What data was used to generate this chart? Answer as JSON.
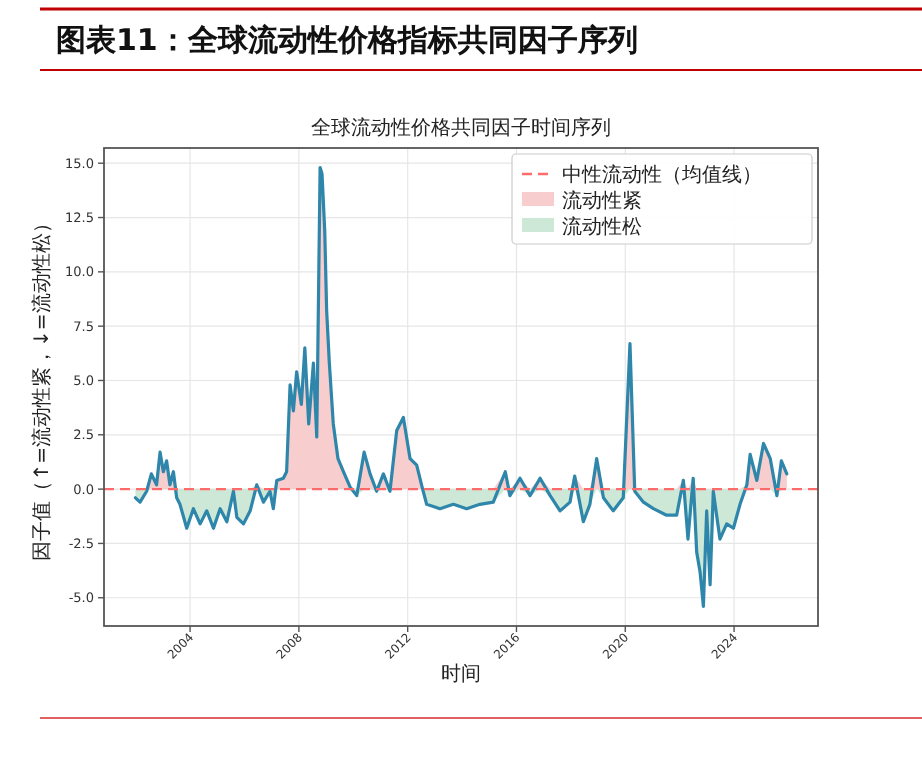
{
  "chart_data": {
    "type": "line",
    "title": "图表11：全球流动性价格指标共同因子序列",
    "subtitle": "全球流动性价格共同因子时间序列",
    "xlabel": "时间",
    "ylabel": "因子值（↑=流动性紧，↓=流动性松）",
    "x": [
      "2001-12-28",
      "2002-02-28",
      "2002-05-28",
      "2002-07-30",
      "2002-10-08",
      "2002-11-24",
      "2003-01-07",
      "2003-02-20",
      "2003-04-05",
      "2003-05-22",
      "2003-07-05",
      "2003-08-18",
      "2003-11-17",
      "2004-02-14",
      "2004-05-15",
      "2004-08-12",
      "2004-11-10",
      "2005-02-07",
      "2005-05-09",
      "2005-08-05",
      "2005-09-20",
      "2005-12-18",
      "2006-03-18",
      "2006-06-14",
      "2006-09-12",
      "2006-12-09",
      "2007-01-23",
      "2007-03-10",
      "2007-06-06",
      "2007-07-20",
      "2007-09-05",
      "2007-10-19",
      "2007-12-02",
      "2008-02-03",
      "2008-03-21",
      "2008-05-12",
      "2008-07-14",
      "2008-08-28",
      "2008-10-12",
      "2008-11-07",
      "2008-12-13",
      "2009-01-08",
      "2009-02-13",
      "2009-04-07",
      "2009-06-09",
      "2009-08-21",
      "2009-11-18",
      "2010-02-16",
      "2010-05-26",
      "2010-08-14",
      "2010-11-10",
      "2011-02-09",
      "2011-05-08",
      "2011-08-07",
      "2011-11-04",
      "2012-02-02",
      "2012-05-01",
      "2012-07-12",
      "2012-09-12",
      "2013-03-10",
      "2013-09-05",
      "2014-03-03",
      "2014-08-29",
      "2015-02-24",
      "2015-08-04",
      "2015-10-05",
      "2016-02-17",
      "2016-07-01",
      "2016-11-13",
      "2017-03-28",
      "2017-08-08",
      "2017-12-20",
      "2018-02-21",
      "2018-06-17",
      "2018-09-13",
      "2018-12-13",
      "2019-03-14",
      "2019-07-24",
      "2019-12-05",
      "2020-03-04",
      "2020-05-07",
      "2020-09-01",
      "2021-01-12",
      "2021-07-09",
      "2021-11-21",
      "2022-02-19",
      "2022-04-22",
      "2022-07-01",
      "2022-08-17",
      "2022-10-01",
      "2022-11-15",
      "2022-12-29",
      "2023-02-13",
      "2023-03-28",
      "2023-06-25",
      "2023-09-24",
      "2023-12-23",
      "2024-03-21",
      "2024-06-21",
      "2024-08-04",
      "2024-11-01",
      "2025-01-30",
      "2025-05-01",
      "2025-07-29",
      "2025-09-27",
      "2025-12-09"
    ],
    "series": [
      {
        "type": "area",
        "name": "流动性紧",
        "color": "#f7cdcd",
        "values": [
          0,
          0,
          0,
          0.7,
          0.2,
          1.7,
          0.8,
          1.3,
          0.2,
          0.8,
          0,
          0,
          0,
          0,
          0,
          0,
          0,
          0,
          0,
          0,
          0,
          0,
          0,
          0.2,
          0,
          0,
          0,
          0.4,
          0.5,
          0.8,
          4.8,
          3.6,
          5.4,
          3.9,
          6.5,
          3.0,
          5.8,
          2.4,
          14.8,
          14.5,
          11.9,
          8.2,
          5.8,
          3.0,
          1.4,
          0.8,
          0.1,
          0,
          1.7,
          0.7,
          0,
          0.7,
          0,
          2.7,
          3.3,
          1.4,
          1.1,
          0.1,
          0,
          0,
          0,
          0,
          0,
          0,
          0.8,
          0,
          0.5,
          0,
          0.5,
          0,
          0,
          0,
          0.6,
          0,
          0,
          1.4,
          0,
          0,
          0,
          6.7,
          0,
          0,
          0,
          0,
          0,
          0.4,
          0,
          0.5,
          0,
          0,
          0,
          0,
          0,
          0,
          0,
          0,
          0,
          0,
          0.2,
          1.6,
          0.4,
          2.1,
          1.4,
          0,
          1.3,
          0.7
        ]
      },
      {
        "type": "area",
        "name": "流动性松",
        "color": "#cde8d6",
        "values": [
          -0.4,
          -0.6,
          -0.1,
          0,
          0,
          0,
          0,
          0,
          0,
          0,
          -0.4,
          -0.7,
          -1.8,
          -0.9,
          -1.6,
          -1.0,
          -1.8,
          -0.9,
          -1.5,
          -0.1,
          -1.3,
          -1.6,
          -1.0,
          0,
          -0.6,
          -0.1,
          -0.9,
          0,
          0,
          0,
          0,
          0,
          0,
          0,
          0,
          0,
          0,
          0,
          0,
          0,
          0,
          0,
          0,
          0,
          0,
          0,
          0,
          -0.3,
          0,
          0,
          -0.1,
          0,
          -0.1,
          0,
          0,
          0,
          0,
          0,
          -0.7,
          -0.9,
          -0.7,
          -0.9,
          -0.7,
          -0.6,
          0,
          -0.3,
          0,
          -0.3,
          0,
          -0.3,
          -1.0,
          -0.6,
          0,
          -1.5,
          -0.7,
          0,
          -0.4,
          -1.0,
          -0.4,
          0,
          -0.1,
          -0.6,
          -0.9,
          -1.2,
          -1.2,
          0,
          -2.3,
          0,
          -2.9,
          -3.8,
          -5.4,
          -1.0,
          -4.4,
          -0.1,
          -2.3,
          -1.6,
          -1.8,
          -0.7,
          0,
          0,
          0,
          0,
          0,
          -0.3,
          0,
          0
        ]
      },
      {
        "color": "#2e86ab",
        "values": [
          -0.4,
          -0.6,
          -0.1,
          0.7,
          0.2,
          1.7,
          0.8,
          1.3,
          0.2,
          0.8,
          -0.4,
          -0.7,
          -1.8,
          -0.9,
          -1.6,
          -1.0,
          -1.8,
          -0.9,
          -1.5,
          -0.1,
          -1.3,
          -1.6,
          -1.0,
          0.2,
          -0.6,
          -0.1,
          -0.9,
          0.4,
          0.5,
          0.8,
          4.8,
          3.6,
          5.4,
          3.9,
          6.5,
          3.0,
          5.8,
          2.4,
          14.8,
          14.5,
          11.9,
          8.2,
          5.8,
          3.0,
          1.4,
          0.8,
          0.1,
          -0.3,
          1.7,
          0.7,
          -0.1,
          0.7,
          -0.1,
          2.7,
          3.3,
          1.4,
          1.1,
          0.1,
          -0.7,
          -0.9,
          -0.7,
          -0.9,
          -0.7,
          -0.6,
          0.8,
          -0.3,
          0.5,
          -0.3,
          0.5,
          -0.3,
          -1.0,
          -0.6,
          0.6,
          -1.5,
          -0.7,
          1.4,
          -0.4,
          -1.0,
          -0.4,
          6.7,
          -0.1,
          -0.6,
          -0.9,
          -1.2,
          -1.2,
          0.4,
          -2.3,
          0.5,
          -2.9,
          -3.8,
          -5.4,
          -1.0,
          -4.4,
          -0.1,
          -2.3,
          -1.6,
          -1.8,
          -0.7,
          0.2,
          1.6,
          0.4,
          2.1,
          1.4,
          -0.3,
          1.3,
          0.7
        ]
      }
    ],
    "xlim": [
      "2000-11",
      "2027-02"
    ],
    "xticks": [
      "2004",
      "2008",
      "2012",
      "2016",
      "2020",
      "2024"
    ],
    "ylim": [
      -6.3,
      15.7
    ],
    "yticks": [
      {
        "value": -5,
        "label": "-5.0"
      },
      {
        "value": -2.5,
        "label": "-2.5"
      },
      {
        "value": 0,
        "label": "0.0"
      },
      {
        "value": 2.5,
        "label": "2.5"
      },
      {
        "value": 5,
        "label": "5.0"
      },
      {
        "value": 7.5,
        "label": "7.5"
      },
      {
        "value": 10,
        "label": "10.0"
      },
      {
        "value": 12.5,
        "label": "12.5"
      },
      {
        "value": 15,
        "label": "15.0"
      }
    ],
    "ref_lines": [
      {
        "axis": "y",
        "value": 0,
        "label": "中性流动性（均值线）",
        "color": "#ff6b6b",
        "line_style": "dashed"
      }
    ],
    "grid": true,
    "legend": "top right"
  }
}
